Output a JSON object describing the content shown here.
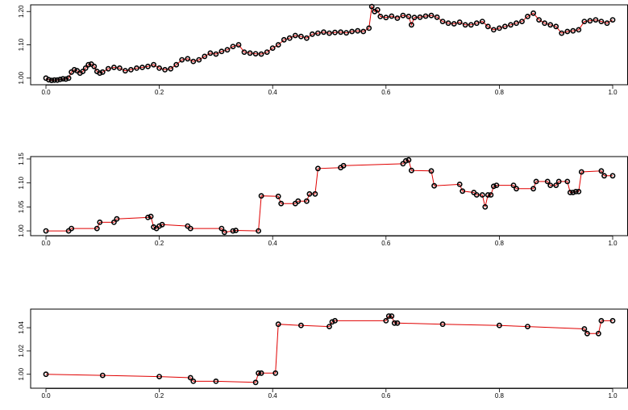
{
  "chart_data": [
    {
      "type": "line",
      "title": "",
      "xlabel": "",
      "ylabel": "",
      "xlim": [
        0,
        1
      ],
      "ylim": [
        0.98,
        1.22
      ],
      "x_ticks": [
        0,
        0.2,
        0.4,
        0.6,
        0.8,
        1.0
      ],
      "x_tick_labels": [
        "0.0",
        "0.2",
        "0.4",
        "0.6",
        "0.8",
        "1.0"
      ],
      "y_ticks": [
        1.0,
        1.1,
        1.2
      ],
      "y_tick_labels": [
        "1.00",
        "1.10",
        "1.20"
      ],
      "grid": false,
      "series": [
        {
          "style": "points-connected",
          "color": "#e00000",
          "point_color": "#000000",
          "x": [
            0.0,
            0.005,
            0.01,
            0.015,
            0.02,
            0.025,
            0.03,
            0.035,
            0.04,
            0.045,
            0.05,
            0.055,
            0.06,
            0.065,
            0.07,
            0.075,
            0.08,
            0.085,
            0.09,
            0.095,
            0.1,
            0.11,
            0.12,
            0.13,
            0.14,
            0.15,
            0.16,
            0.17,
            0.18,
            0.19,
            0.2,
            0.21,
            0.22,
            0.23,
            0.24,
            0.25,
            0.26,
            0.27,
            0.28,
            0.29,
            0.3,
            0.31,
            0.32,
            0.33,
            0.34,
            0.35,
            0.36,
            0.37,
            0.38,
            0.39,
            0.4,
            0.41,
            0.42,
            0.43,
            0.44,
            0.45,
            0.46,
            0.47,
            0.48,
            0.49,
            0.5,
            0.51,
            0.52,
            0.53,
            0.54,
            0.55,
            0.56,
            0.57,
            0.575,
            0.58,
            0.585,
            0.59,
            0.6,
            0.61,
            0.62,
            0.63,
            0.64,
            0.645,
            0.65,
            0.66,
            0.67,
            0.68,
            0.69,
            0.7,
            0.71,
            0.72,
            0.73,
            0.74,
            0.75,
            0.76,
            0.77,
            0.78,
            0.79,
            0.8,
            0.81,
            0.82,
            0.83,
            0.84,
            0.85,
            0.86,
            0.87,
            0.88,
            0.89,
            0.9,
            0.91,
            0.92,
            0.93,
            0.94,
            0.95,
            0.96,
            0.97,
            0.98,
            0.99,
            1.0
          ],
          "y": [
            1.0,
            0.995,
            0.993,
            0.994,
            0.994,
            0.996,
            0.998,
            0.997,
            1.0,
            1.018,
            1.025,
            1.022,
            1.015,
            1.02,
            1.03,
            1.04,
            1.042,
            1.035,
            1.02,
            1.015,
            1.018,
            1.028,
            1.032,
            1.03,
            1.022,
            1.025,
            1.03,
            1.032,
            1.035,
            1.04,
            1.03,
            1.025,
            1.028,
            1.04,
            1.055,
            1.058,
            1.05,
            1.055,
            1.065,
            1.075,
            1.072,
            1.08,
            1.085,
            1.095,
            1.1,
            1.078,
            1.075,
            1.073,
            1.072,
            1.078,
            1.09,
            1.1,
            1.115,
            1.12,
            1.128,
            1.125,
            1.12,
            1.132,
            1.135,
            1.138,
            1.135,
            1.137,
            1.138,
            1.136,
            1.14,
            1.142,
            1.14,
            1.15,
            1.215,
            1.2,
            1.205,
            1.185,
            1.182,
            1.186,
            1.18,
            1.188,
            1.185,
            1.16,
            1.182,
            1.183,
            1.186,
            1.188,
            1.183,
            1.17,
            1.165,
            1.163,
            1.168,
            1.16,
            1.16,
            1.165,
            1.17,
            1.155,
            1.145,
            1.15,
            1.155,
            1.16,
            1.165,
            1.17,
            1.185,
            1.195,
            1.175,
            1.165,
            1.16,
            1.155,
            1.135,
            1.14,
            1.142,
            1.145,
            1.17,
            1.172,
            1.175,
            1.17,
            1.165,
            1.175
          ]
        }
      ]
    },
    {
      "type": "line",
      "title": "",
      "xlabel": "",
      "ylabel": "",
      "xlim": [
        0,
        1
      ],
      "ylim": [
        0.99,
        1.155
      ],
      "x_ticks": [
        0,
        0.2,
        0.4,
        0.6,
        0.8,
        1.0
      ],
      "x_tick_labels": [
        "0.0",
        "0.2",
        "0.4",
        "0.6",
        "0.8",
        "1.0"
      ],
      "y_ticks": [
        1.0,
        1.05,
        1.1,
        1.15
      ],
      "y_tick_labels": [
        "1.00",
        "1.05",
        "1.10",
        "1.15"
      ],
      "grid": false,
      "series": [
        {
          "style": "points-connected",
          "color": "#e00000",
          "point_color": "#000000",
          "x": [
            0.0,
            0.04,
            0.045,
            0.09,
            0.095,
            0.12,
            0.125,
            0.18,
            0.185,
            0.19,
            0.195,
            0.2,
            0.205,
            0.25,
            0.255,
            0.31,
            0.315,
            0.33,
            0.335,
            0.375,
            0.38,
            0.41,
            0.415,
            0.44,
            0.445,
            0.46,
            0.465,
            0.475,
            0.48,
            0.52,
            0.525,
            0.63,
            0.635,
            0.64,
            0.645,
            0.68,
            0.685,
            0.73,
            0.735,
            0.755,
            0.76,
            0.77,
            0.775,
            0.78,
            0.785,
            0.79,
            0.795,
            0.825,
            0.83,
            0.86,
            0.865,
            0.885,
            0.89,
            0.9,
            0.905,
            0.92,
            0.925,
            0.93,
            0.935,
            0.94,
            0.945,
            0.98,
            0.985,
            1.0
          ],
          "y": [
            1.0,
            1.0,
            1.005,
            1.005,
            1.018,
            1.018,
            1.025,
            1.028,
            1.03,
            1.008,
            1.005,
            1.01,
            1.013,
            1.01,
            1.005,
            1.005,
            0.997,
            1.0,
            1.001,
            1.0,
            1.073,
            1.072,
            1.057,
            1.057,
            1.062,
            1.062,
            1.077,
            1.077,
            1.13,
            1.132,
            1.136,
            1.14,
            1.146,
            1.148,
            1.126,
            1.125,
            1.094,
            1.097,
            1.083,
            1.08,
            1.075,
            1.075,
            1.05,
            1.075,
            1.075,
            1.093,
            1.095,
            1.095,
            1.088,
            1.088,
            1.103,
            1.103,
            1.095,
            1.095,
            1.103,
            1.103,
            1.08,
            1.08,
            1.082,
            1.082,
            1.123,
            1.125,
            1.115,
            1.115
          ]
        }
      ]
    },
    {
      "type": "line",
      "title": "",
      "xlabel": "",
      "ylabel": "",
      "xlim": [
        0,
        1
      ],
      "ylim": [
        0.988,
        1.056
      ],
      "x_ticks": [
        0,
        0.2,
        0.4,
        0.6,
        0.8,
        1.0
      ],
      "x_tick_labels": [
        "0.0",
        "0.2",
        "0.4",
        "0.6",
        "0.8",
        "1.0"
      ],
      "y_ticks": [
        1.0,
        1.02,
        1.04
      ],
      "y_tick_labels": [
        "1.00",
        "1.02",
        "1.04"
      ],
      "grid": false,
      "series": [
        {
          "style": "points-connected",
          "color": "#e00000",
          "point_color": "#000000",
          "x": [
            0.0,
            0.1,
            0.2,
            0.255,
            0.26,
            0.3,
            0.37,
            0.375,
            0.38,
            0.405,
            0.41,
            0.45,
            0.5,
            0.505,
            0.51,
            0.6,
            0.605,
            0.61,
            0.615,
            0.62,
            0.7,
            0.8,
            0.85,
            0.95,
            0.955,
            0.975,
            0.98,
            1.0
          ],
          "y": [
            1.0,
            0.999,
            0.998,
            0.997,
            0.994,
            0.994,
            0.993,
            1.001,
            1.001,
            1.001,
            1.043,
            1.042,
            1.041,
            1.045,
            1.046,
            1.046,
            1.05,
            1.05,
            1.044,
            1.044,
            1.043,
            1.042,
            1.041,
            1.039,
            1.035,
            1.035,
            1.046,
            1.046
          ]
        }
      ]
    }
  ]
}
